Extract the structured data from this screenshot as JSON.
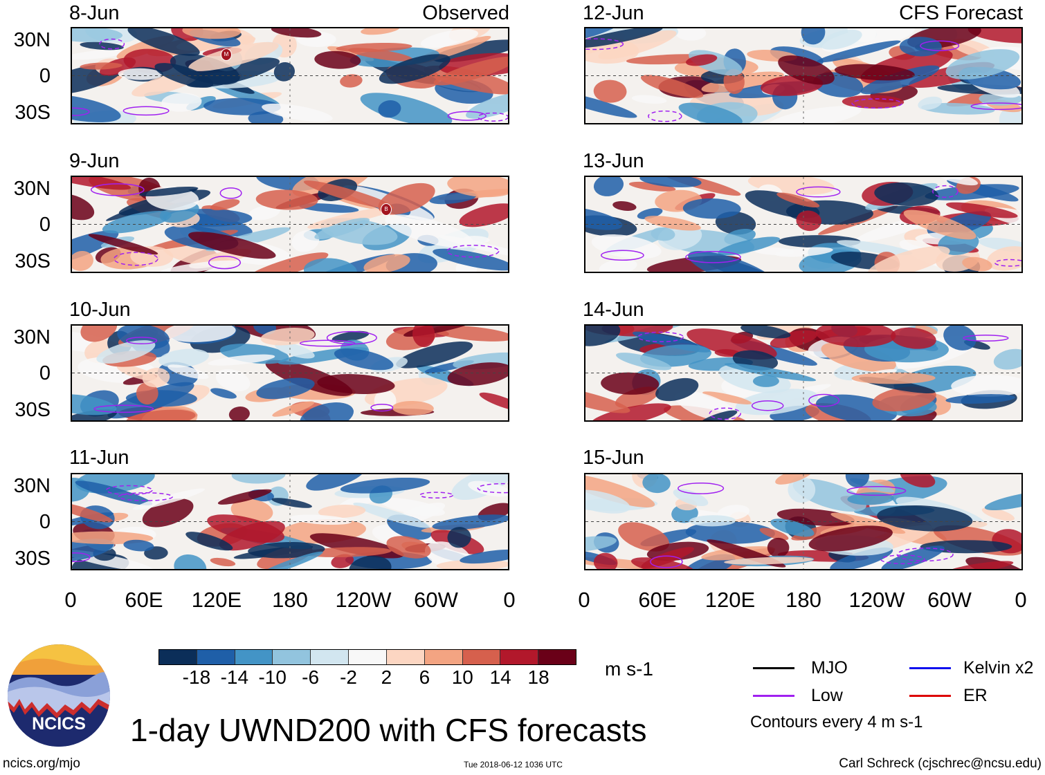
{
  "panels": [
    {
      "date": "8-Jun",
      "title": "Observed",
      "side": "left"
    },
    {
      "date": "9-Jun",
      "title": "",
      "side": "left"
    },
    {
      "date": "10-Jun",
      "title": "",
      "side": "left"
    },
    {
      "date": "11-Jun",
      "title": "",
      "side": "left"
    },
    {
      "date": "12-Jun",
      "title": "CFS Forecast",
      "side": "right"
    },
    {
      "date": "13-Jun",
      "title": "",
      "side": "right"
    },
    {
      "date": "14-Jun",
      "title": "",
      "side": "right"
    },
    {
      "date": "15-Jun",
      "title": "",
      "side": "right"
    }
  ],
  "y_labels": [
    "30N",
    "0",
    "30S"
  ],
  "x_labels": [
    "0",
    "60E",
    "120E",
    "180",
    "120W",
    "60W",
    "0"
  ],
  "storm_markers": [
    "M",
    "B"
  ],
  "colorbar": {
    "ticks": [
      "-18",
      "-14",
      "-10",
      "-6",
      "-2",
      "2",
      "6",
      "10",
      "14",
      "18"
    ],
    "unit": "m s-1",
    "colors": [
      "#0b2e59",
      "#1f5fa8",
      "#4394c6",
      "#92c4de",
      "#d2e6f0",
      "#f8f8f8",
      "#fcd6c2",
      "#f3a482",
      "#d6604d",
      "#b2182b",
      "#6a0018"
    ]
  },
  "legend": {
    "items": [
      {
        "label": "MJO",
        "color": "#000000"
      },
      {
        "label": "Kelvin x2",
        "color": "#1010ee"
      },
      {
        "label": "Low",
        "color": "#a020f0"
      },
      {
        "label": "ER",
        "color": "#dd0000"
      }
    ],
    "contours_note": "Contours every 4 m s-1"
  },
  "main_title": "1-day UWND200 with CFS forecasts",
  "logo_text": "NCICS",
  "footer": {
    "left": "ncics.org/mjo",
    "center": "Tue 2018-06-12 1036 UTC",
    "right": "Carl Schreck (cjschrec@ncsu.edu)"
  }
}
